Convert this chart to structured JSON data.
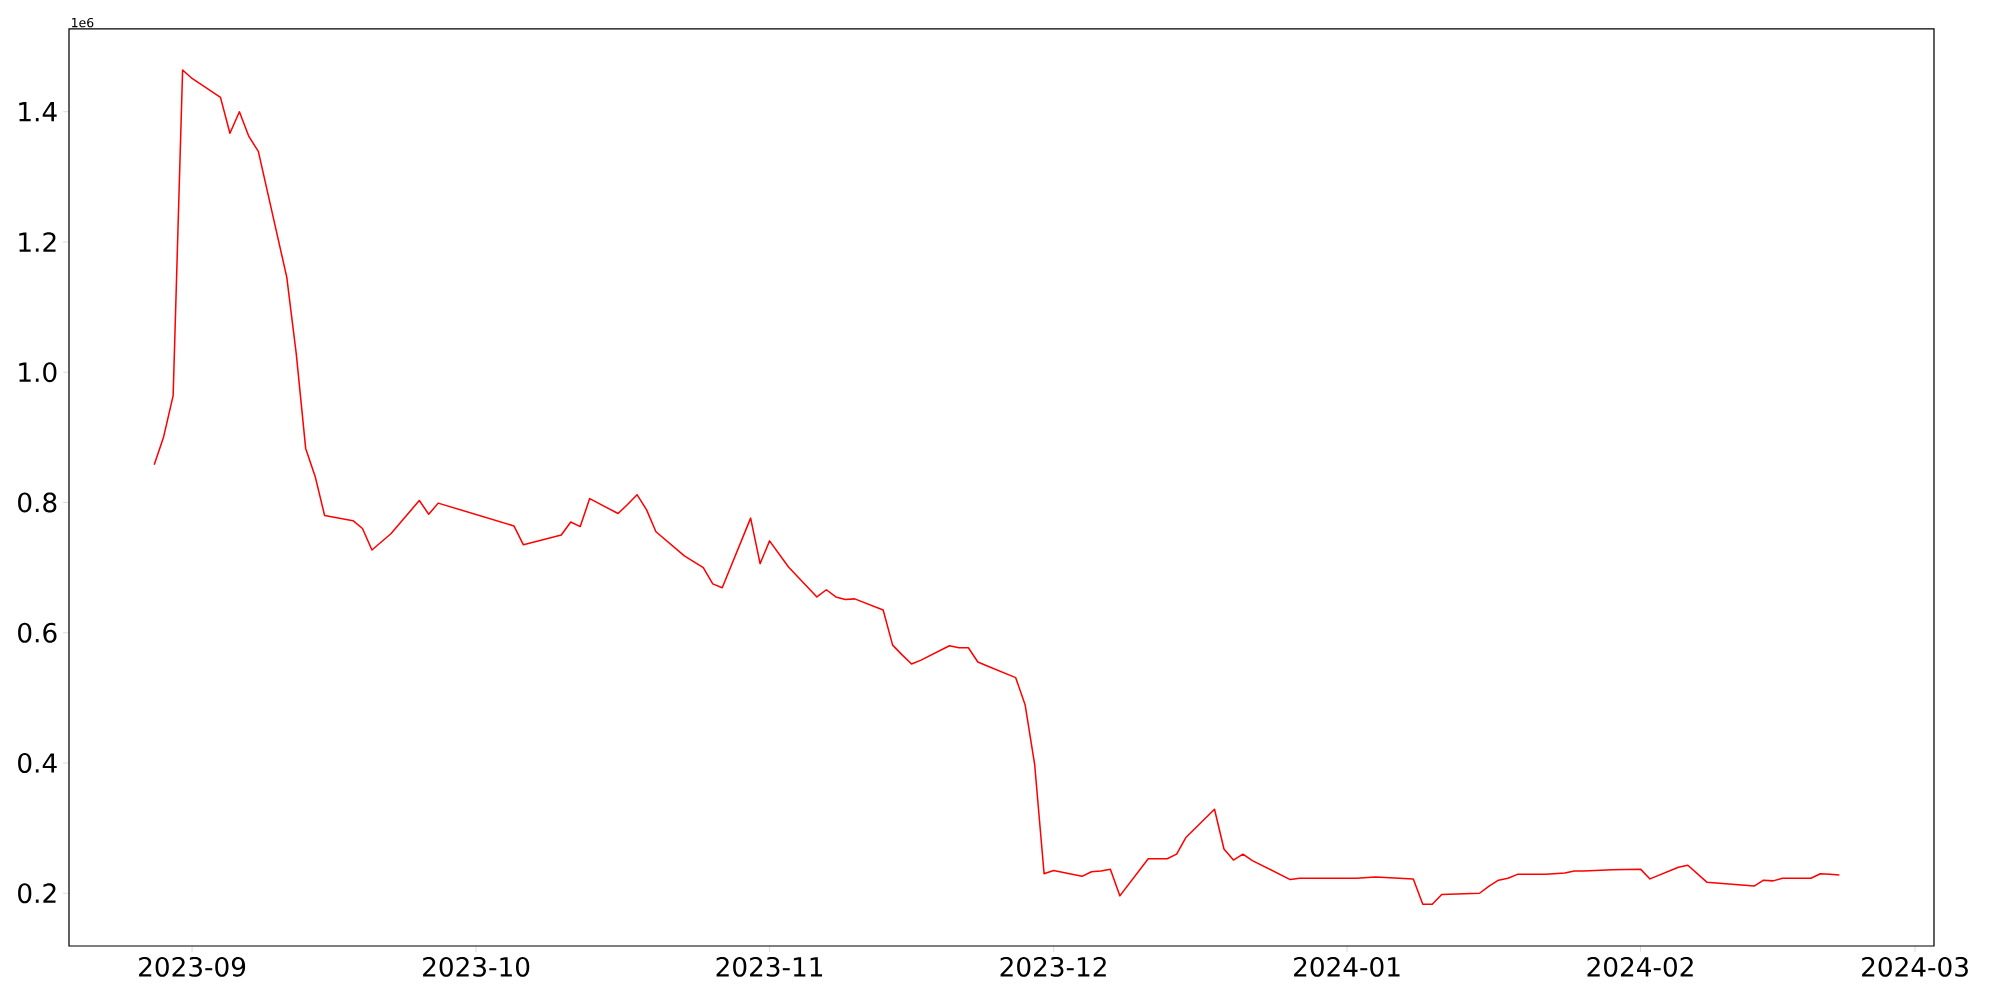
{
  "chart_data": {
    "type": "line",
    "color": "#ff0000",
    "x": [
      "2023-08-28",
      "2023-08-29",
      "2023-08-30",
      "2023-08-31",
      "2023-09-01",
      "2023-09-04",
      "2023-09-05",
      "2023-09-06",
      "2023-09-07",
      "2023-09-08",
      "2023-09-11",
      "2023-09-12",
      "2023-09-13",
      "2023-09-14",
      "2023-09-15",
      "2023-09-18",
      "2023-09-19",
      "2023-09-20",
      "2023-09-22",
      "2023-09-25",
      "2023-09-26",
      "2023-09-27",
      "2023-10-05",
      "2023-10-06",
      "2023-10-10",
      "2023-10-11",
      "2023-10-12",
      "2023-10-13",
      "2023-10-16",
      "2023-10-17",
      "2023-10-18",
      "2023-10-19",
      "2023-10-20",
      "2023-10-23",
      "2023-10-25",
      "2023-10-26",
      "2023-10-27",
      "2023-10-30",
      "2023-10-31",
      "2023-11-01",
      "2023-11-03",
      "2023-11-06",
      "2023-11-07",
      "2023-11-08",
      "2023-11-09",
      "2023-11-10",
      "2023-11-13",
      "2023-11-14",
      "2023-11-15",
      "2023-11-16",
      "2023-11-17",
      "2023-11-20",
      "2023-11-21",
      "2023-11-22",
      "2023-11-23",
      "2023-11-24",
      "2023-11-27",
      "2023-11-28",
      "2023-11-29",
      "2023-11-30",
      "2023-12-01",
      "2023-12-04",
      "2023-12-05",
      "2023-12-06",
      "2023-12-07",
      "2023-12-08",
      "2023-12-11",
      "2023-12-13",
      "2023-12-14",
      "2023-12-15",
      "2023-12-18",
      "2023-12-19",
      "2023-12-20",
      "2023-12-21",
      "2023-12-22",
      "2023-12-26",
      "2023-12-27",
      "2024-01-02",
      "2024-01-04",
      "2024-01-08",
      "2024-01-09",
      "2024-01-10",
      "2024-01-11",
      "2024-01-15",
      "2024-01-16",
      "2024-01-17",
      "2024-01-18",
      "2024-01-19",
      "2024-01-22",
      "2024-01-24",
      "2024-01-25",
      "2024-01-26",
      "2024-01-29",
      "2024-02-01",
      "2024-02-02",
      "2024-02-05",
      "2024-02-06",
      "2024-02-08",
      "2024-02-13",
      "2024-02-14",
      "2024-02-15",
      "2024-02-16",
      "2024-02-19",
      "2024-02-20",
      "2024-02-21",
      "2024-02-22"
    ],
    "values": [
      0.858,
      0.901,
      0.964,
      1.464,
      1.451,
      1.422,
      1.367,
      1.4,
      1.362,
      1.339,
      1.146,
      1.029,
      0.883,
      0.84,
      0.78,
      0.772,
      0.76,
      0.727,
      0.752,
      0.803,
      0.782,
      0.799,
      0.764,
      0.735,
      0.75,
      0.77,
      0.763,
      0.806,
      0.783,
      0.797,
      0.812,
      0.789,
      0.755,
      0.718,
      0.7,
      0.675,
      0.669,
      0.776,
      0.706,
      0.741,
      0.701,
      0.655,
      0.666,
      0.655,
      0.651,
      0.652,
      0.635,
      0.581,
      0.566,
      0.552,
      0.558,
      0.58,
      0.577,
      0.577,
      0.555,
      0.549,
      0.531,
      0.489,
      0.398,
      0.23,
      0.235,
      0.226,
      0.233,
      0.234,
      0.237,
      0.196,
      0.253,
      0.253,
      0.26,
      0.286,
      0.329,
      0.268,
      0.251,
      0.26,
      0.25,
      0.221,
      0.223,
      0.223,
      0.225,
      0.222,
      0.183,
      0.183,
      0.198,
      0.2,
      0.211,
      0.22,
      0.223,
      0.229,
      0.229,
      0.231,
      0.234,
      0.234,
      0.236,
      0.237,
      0.222,
      0.24,
      0.243,
      0.217,
      0.211,
      0.22,
      0.219,
      0.223,
      0.223,
      0.23,
      0.229,
      0.228
    ],
    "xlim": [
      "2023-08-19",
      "2024-03-03"
    ],
    "xticks": [
      "2023-09",
      "2023-10",
      "2023-11",
      "2023-12",
      "2024-01",
      "2024-02",
      "2024-03"
    ],
    "ylim": [
      0.119,
      1.527
    ],
    "yticks": [
      0.2,
      0.4,
      0.6,
      0.8,
      {
        "value": 1.0,
        "label": "1.0"
      },
      1.2,
      1.4
    ],
    "annotations": [
      "1e6"
    ]
  }
}
